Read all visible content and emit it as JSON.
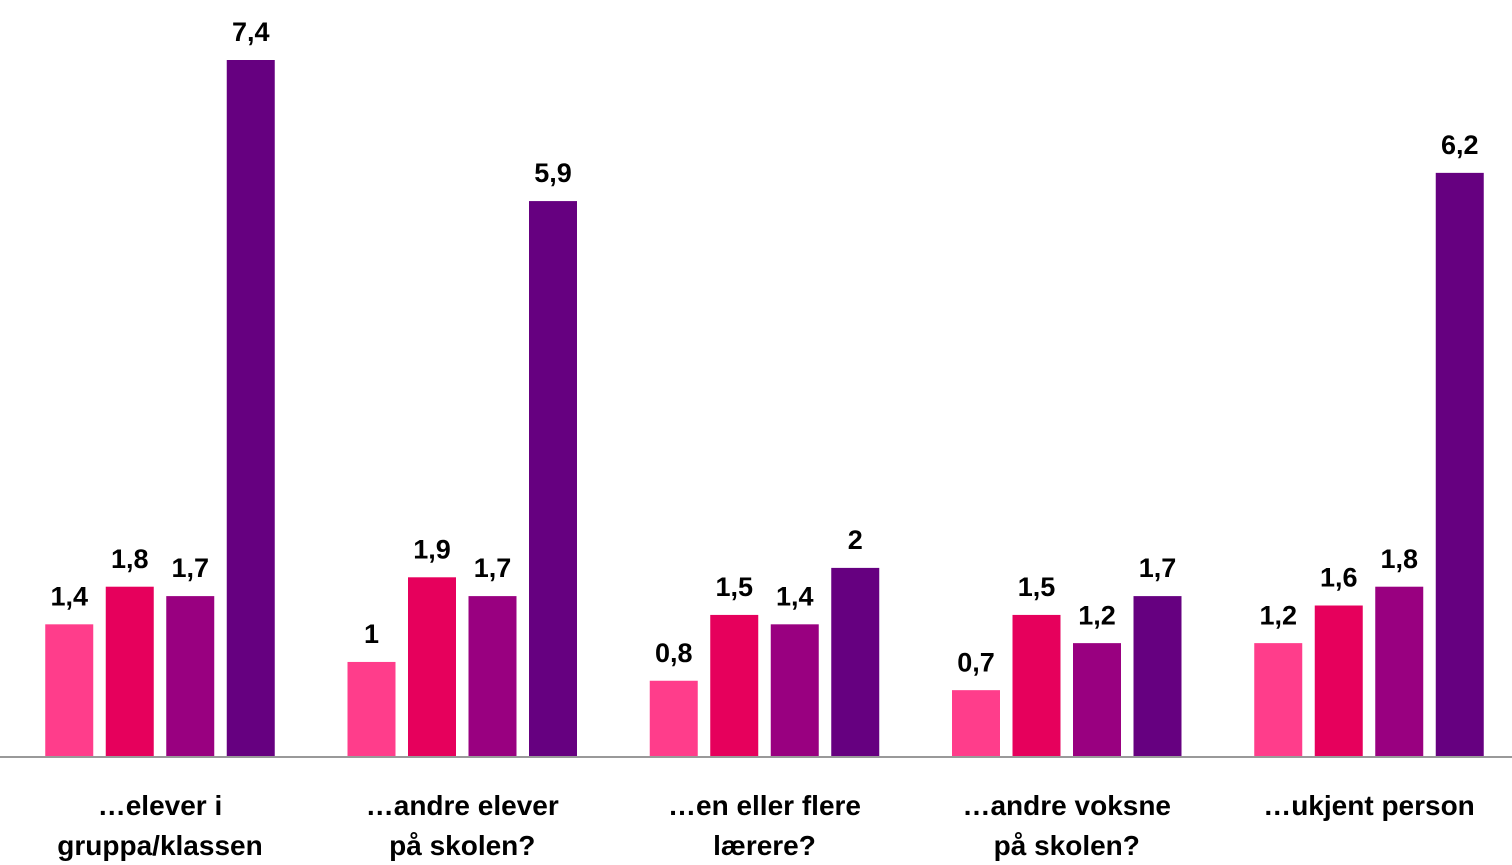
{
  "chart_data": {
    "type": "bar",
    "categories": [
      "…elever i\ngruppa/klassen",
      "…andre elever\npå skolen?",
      "…en eller flere\nlærere?",
      "…andre voksne\npå skolen?",
      "…ukjent person"
    ],
    "series": [
      {
        "color": "#ff3d8b",
        "values": [
          1.4,
          1,
          0.8,
          0.7,
          1.2
        ],
        "value_labels": [
          "1,4",
          "1",
          "0,8",
          "0,7",
          "1,2"
        ]
      },
      {
        "color": "#e6005c",
        "values": [
          1.8,
          1.9,
          1.5,
          1.5,
          1.6
        ],
        "value_labels": [
          "1,8",
          "1,9",
          "1,5",
          "1,5",
          "1,6"
        ]
      },
      {
        "color": "#990080",
        "values": [
          1.7,
          1.7,
          1.4,
          1.2,
          1.8
        ],
        "value_labels": [
          "1,7",
          "1,7",
          "1,4",
          "1,2",
          "1,8"
        ]
      },
      {
        "color": "#660080",
        "values": [
          7.4,
          5.9,
          2,
          1.7,
          6.2
        ],
        "value_labels": [
          "7,4",
          "5,9",
          "2",
          "1,7",
          "6,2"
        ]
      }
    ]
  }
}
